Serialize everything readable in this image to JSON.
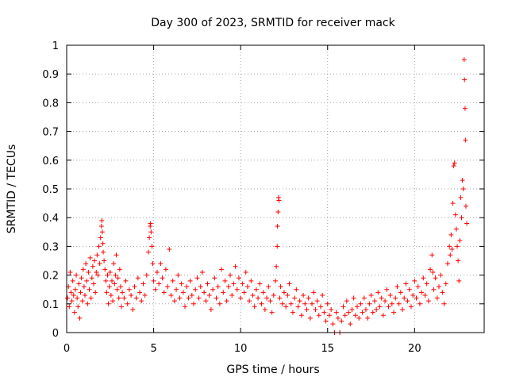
{
  "chart_data": {
    "type": "scatter",
    "title": "Day 300 of 2023, SRMTID for receiver mack",
    "xlabel": "GPS time / hours",
    "ylabel": "SRMTID / TECUs",
    "xlim": [
      0,
      24
    ],
    "ylim": [
      0,
      1
    ],
    "x_ticks": [
      0,
      5,
      10,
      15,
      20
    ],
    "x_tick_labels": [
      "0",
      "5",
      "10",
      "15",
      "20"
    ],
    "y_ticks": [
      0,
      0.1,
      0.2,
      0.3,
      0.4,
      0.5,
      0.6,
      0.7,
      0.8,
      0.9,
      1
    ],
    "y_tick_labels": [
      "0",
      "0.1",
      "0.2",
      "0.3",
      "0.4",
      "0.5",
      "0.6",
      "0.7",
      "0.8",
      "0.9",
      "1"
    ],
    "grid": true,
    "marker": "+",
    "color": "#ff0000",
    "series": [
      {
        "name": "SRMTID",
        "points": [
          [
            0.05,
            0.12
          ],
          [
            0.1,
            0.16
          ],
          [
            0.15,
            0.09
          ],
          [
            0.2,
            0.21
          ],
          [
            0.25,
            0.14
          ],
          [
            0.3,
            0.11
          ],
          [
            0.35,
            0.18
          ],
          [
            0.4,
            0.13
          ],
          [
            0.45,
            0.07
          ],
          [
            0.5,
            0.15
          ],
          [
            0.55,
            0.2
          ],
          [
            0.6,
            0.12
          ],
          [
            0.65,
            0.09
          ],
          [
            0.7,
            0.17
          ],
          [
            0.75,
            0.05
          ],
          [
            0.8,
            0.14
          ],
          [
            0.85,
            0.19
          ],
          [
            0.9,
            0.11
          ],
          [
            0.95,
            0.22
          ],
          [
            1.0,
            0.16
          ],
          [
            1.05,
            0.13
          ],
          [
            1.1,
            0.24
          ],
          [
            1.15,
            0.18
          ],
          [
            1.2,
            0.1
          ],
          [
            1.25,
            0.21
          ],
          [
            1.3,
            0.15
          ],
          [
            1.35,
            0.26
          ],
          [
            1.4,
            0.12
          ],
          [
            1.45,
            0.19
          ],
          [
            1.5,
            0.23
          ],
          [
            1.55,
            0.17
          ],
          [
            1.6,
            0.25
          ],
          [
            1.65,
            0.14
          ],
          [
            1.7,
            0.21
          ],
          [
            1.75,
            0.27
          ],
          [
            1.8,
            0.2
          ],
          [
            1.85,
            0.3
          ],
          [
            1.9,
            0.24
          ],
          [
            1.95,
            0.33
          ],
          [
            2.0,
            0.37
          ],
          [
            2.02,
            0.39
          ],
          [
            2.05,
            0.35
          ],
          [
            2.08,
            0.31
          ],
          [
            2.1,
            0.28
          ],
          [
            2.15,
            0.25
          ],
          [
            2.2,
            0.22
          ],
          [
            2.25,
            0.18
          ],
          [
            2.3,
            0.14
          ],
          [
            2.35,
            0.2
          ],
          [
            2.4,
            0.1
          ],
          [
            2.45,
            0.16
          ],
          [
            2.5,
            0.21
          ],
          [
            2.55,
            0.13
          ],
          [
            2.6,
            0.18
          ],
          [
            2.65,
            0.11
          ],
          [
            2.7,
            0.24
          ],
          [
            2.75,
            0.17
          ],
          [
            2.8,
            0.2
          ],
          [
            2.85,
            0.27
          ],
          [
            2.9,
            0.15
          ],
          [
            2.95,
            0.19
          ],
          [
            3.0,
            0.12
          ],
          [
            3.05,
            0.22
          ],
          [
            3.1,
            0.16
          ],
          [
            3.15,
            0.09
          ],
          [
            3.2,
            0.14
          ],
          [
            3.3,
            0.12
          ],
          [
            3.4,
            0.18
          ],
          [
            3.5,
            0.1
          ],
          [
            3.6,
            0.15
          ],
          [
            3.7,
            0.13
          ],
          [
            3.8,
            0.08
          ],
          [
            3.9,
            0.16
          ],
          [
            4.0,
            0.12
          ],
          [
            4.1,
            0.19
          ],
          [
            4.2,
            0.14
          ],
          [
            4.3,
            0.11
          ],
          [
            4.4,
            0.17
          ],
          [
            4.5,
            0.13
          ],
          [
            4.6,
            0.2
          ],
          [
            4.7,
            0.28
          ],
          [
            4.75,
            0.33
          ],
          [
            4.8,
            0.37
          ],
          [
            4.82,
            0.38
          ],
          [
            4.85,
            0.35
          ],
          [
            4.9,
            0.3
          ],
          [
            4.95,
            0.24
          ],
          [
            5.0,
            0.18
          ],
          [
            5.1,
            0.15
          ],
          [
            5.2,
            0.21
          ],
          [
            5.3,
            0.17
          ],
          [
            5.4,
            0.24
          ],
          [
            5.5,
            0.19
          ],
          [
            5.6,
            0.14
          ],
          [
            5.7,
            0.22
          ],
          [
            5.8,
            0.16
          ],
          [
            5.9,
            0.29
          ],
          [
            6.0,
            0.13
          ],
          [
            6.1,
            0.18
          ],
          [
            6.2,
            0.11
          ],
          [
            6.3,
            0.15
          ],
          [
            6.4,
            0.2
          ],
          [
            6.5,
            0.12
          ],
          [
            6.6,
            0.17
          ],
          [
            6.7,
            0.14
          ],
          [
            6.8,
            0.09
          ],
          [
            6.9,
            0.16
          ],
          [
            7.0,
            0.12
          ],
          [
            7.1,
            0.18
          ],
          [
            7.2,
            0.13
          ],
          [
            7.3,
            0.1
          ],
          [
            7.4,
            0.15
          ],
          [
            7.5,
            0.19
          ],
          [
            7.6,
            0.12
          ],
          [
            7.7,
            0.16
          ],
          [
            7.8,
            0.21
          ],
          [
            7.9,
            0.14
          ],
          [
            8.0,
            0.11
          ],
          [
            8.1,
            0.17
          ],
          [
            8.2,
            0.13
          ],
          [
            8.3,
            0.08
          ],
          [
            8.4,
            0.15
          ],
          [
            8.5,
            0.19
          ],
          [
            8.6,
            0.12
          ],
          [
            8.7,
            0.16
          ],
          [
            8.8,
            0.1
          ],
          [
            8.9,
            0.22
          ],
          [
            9.0,
            0.14
          ],
          [
            9.1,
            0.18
          ],
          [
            9.2,
            0.11
          ],
          [
            9.3,
            0.16
          ],
          [
            9.4,
            0.2
          ],
          [
            9.5,
            0.13
          ],
          [
            9.6,
            0.17
          ],
          [
            9.7,
            0.23
          ],
          [
            9.8,
            0.15
          ],
          [
            9.9,
            0.19
          ],
          [
            10.0,
            0.12
          ],
          [
            10.1,
            0.17
          ],
          [
            10.2,
            0.14
          ],
          [
            10.3,
            0.21
          ],
          [
            10.4,
            0.16
          ],
          [
            10.5,
            0.11
          ],
          [
            10.6,
            0.18
          ],
          [
            10.7,
            0.13
          ],
          [
            10.8,
            0.09
          ],
          [
            10.9,
            0.15
          ],
          [
            11.0,
            0.12
          ],
          [
            11.1,
            0.17
          ],
          [
            11.2,
            0.1
          ],
          [
            11.3,
            0.14
          ],
          [
            11.4,
            0.08
          ],
          [
            11.5,
            0.12
          ],
          [
            11.6,
            0.16
          ],
          [
            11.7,
            0.11
          ],
          [
            11.8,
            0.07
          ],
          [
            11.9,
            0.13
          ],
          [
            12.0,
            0.18
          ],
          [
            12.05,
            0.23
          ],
          [
            12.1,
            0.3
          ],
          [
            12.12,
            0.37
          ],
          [
            12.15,
            0.42
          ],
          [
            12.18,
            0.47
          ],
          [
            12.2,
            0.46
          ],
          [
            12.25,
            0.12
          ],
          [
            12.3,
            0.16
          ],
          [
            12.4,
            0.1
          ],
          [
            12.5,
            0.14
          ],
          [
            12.6,
            0.09
          ],
          [
            12.7,
            0.13
          ],
          [
            12.8,
            0.17
          ],
          [
            12.9,
            0.1
          ],
          [
            13.0,
            0.07
          ],
          [
            13.1,
            0.12
          ],
          [
            13.2,
            0.15
          ],
          [
            13.3,
            0.09
          ],
          [
            13.4,
            0.11
          ],
          [
            13.5,
            0.06
          ],
          [
            13.6,
            0.13
          ],
          [
            13.7,
            0.1
          ],
          [
            13.8,
            0.08
          ],
          [
            13.9,
            0.12
          ],
          [
            14.0,
            0.05
          ],
          [
            14.1,
            0.1
          ],
          [
            14.2,
            0.14
          ],
          [
            14.3,
            0.08
          ],
          [
            14.4,
            0.11
          ],
          [
            14.5,
            0.06
          ],
          [
            14.6,
            0.09
          ],
          [
            14.7,
            0.13
          ],
          [
            14.8,
            0.07
          ],
          [
            14.9,
            0.04
          ],
          [
            15.0,
            0.1
          ],
          [
            15.1,
            0.06
          ],
          [
            15.2,
            0.08
          ],
          [
            15.3,
            0.03
          ],
          [
            15.4,
            0.0
          ],
          [
            15.5,
            0.07
          ],
          [
            15.6,
            0.05
          ],
          [
            15.7,
            0.0
          ],
          [
            15.8,
            0.04
          ],
          [
            15.9,
            0.09
          ],
          [
            16.0,
            0.06
          ],
          [
            16.1,
            0.11
          ],
          [
            16.2,
            0.07
          ],
          [
            16.3,
            0.03
          ],
          [
            16.4,
            0.08
          ],
          [
            16.5,
            0.12
          ],
          [
            16.6,
            0.06
          ],
          [
            16.7,
            0.09
          ],
          [
            16.8,
            0.05
          ],
          [
            16.9,
            0.1
          ],
          [
            17.0,
            0.07
          ],
          [
            17.1,
            0.12
          ],
          [
            17.2,
            0.08
          ],
          [
            17.3,
            0.05
          ],
          [
            17.4,
            0.1
          ],
          [
            17.5,
            0.13
          ],
          [
            17.6,
            0.07
          ],
          [
            17.7,
            0.11
          ],
          [
            17.8,
            0.08
          ],
          [
            17.9,
            0.14
          ],
          [
            18.0,
            0.09
          ],
          [
            18.1,
            0.12
          ],
          [
            18.2,
            0.06
          ],
          [
            18.3,
            0.11
          ],
          [
            18.4,
            0.15
          ],
          [
            18.5,
            0.09
          ],
          [
            18.6,
            0.13
          ],
          [
            18.7,
            0.1
          ],
          [
            18.8,
            0.07
          ],
          [
            18.9,
            0.12
          ],
          [
            19.0,
            0.16
          ],
          [
            19.1,
            0.1
          ],
          [
            19.2,
            0.14
          ],
          [
            19.3,
            0.08
          ],
          [
            19.4,
            0.12
          ],
          [
            19.5,
            0.17
          ],
          [
            19.6,
            0.11
          ],
          [
            19.7,
            0.15
          ],
          [
            19.8,
            0.09
          ],
          [
            19.9,
            0.13
          ],
          [
            20.0,
            0.18
          ],
          [
            20.1,
            0.12
          ],
          [
            20.2,
            0.16
          ],
          [
            20.3,
            0.1
          ],
          [
            20.4,
            0.14
          ],
          [
            20.5,
            0.19
          ],
          [
            20.6,
            0.13
          ],
          [
            20.7,
            0.17
          ],
          [
            20.8,
            0.11
          ],
          [
            20.9,
            0.22
          ],
          [
            21.0,
            0.27
          ],
          [
            21.05,
            0.21
          ],
          [
            21.1,
            0.15
          ],
          [
            21.2,
            0.19
          ],
          [
            21.3,
            0.12
          ],
          [
            21.4,
            0.16
          ],
          [
            21.5,
            0.2
          ],
          [
            21.6,
            0.14
          ],
          [
            21.7,
            0.1
          ],
          [
            21.8,
            0.17
          ],
          [
            21.9,
            0.24
          ],
          [
            22.0,
            0.3
          ],
          [
            22.05,
            0.27
          ],
          [
            22.1,
            0.34
          ],
          [
            22.15,
            0.29
          ],
          [
            22.2,
            0.45
          ],
          [
            22.25,
            0.58
          ],
          [
            22.3,
            0.59
          ],
          [
            22.35,
            0.41
          ],
          [
            22.4,
            0.36
          ],
          [
            22.45,
            0.3
          ],
          [
            22.5,
            0.25
          ],
          [
            22.55,
            0.18
          ],
          [
            22.6,
            0.32
          ],
          [
            22.65,
            0.47
          ],
          [
            22.7,
            0.4
          ],
          [
            22.75,
            0.53
          ],
          [
            22.8,
            0.5
          ],
          [
            22.85,
            0.95
          ],
          [
            22.87,
            0.88
          ],
          [
            22.9,
            0.78
          ],
          [
            22.92,
            0.67
          ],
          [
            22.95,
            0.44
          ],
          [
            23.0,
            0.38
          ]
        ]
      }
    ]
  }
}
